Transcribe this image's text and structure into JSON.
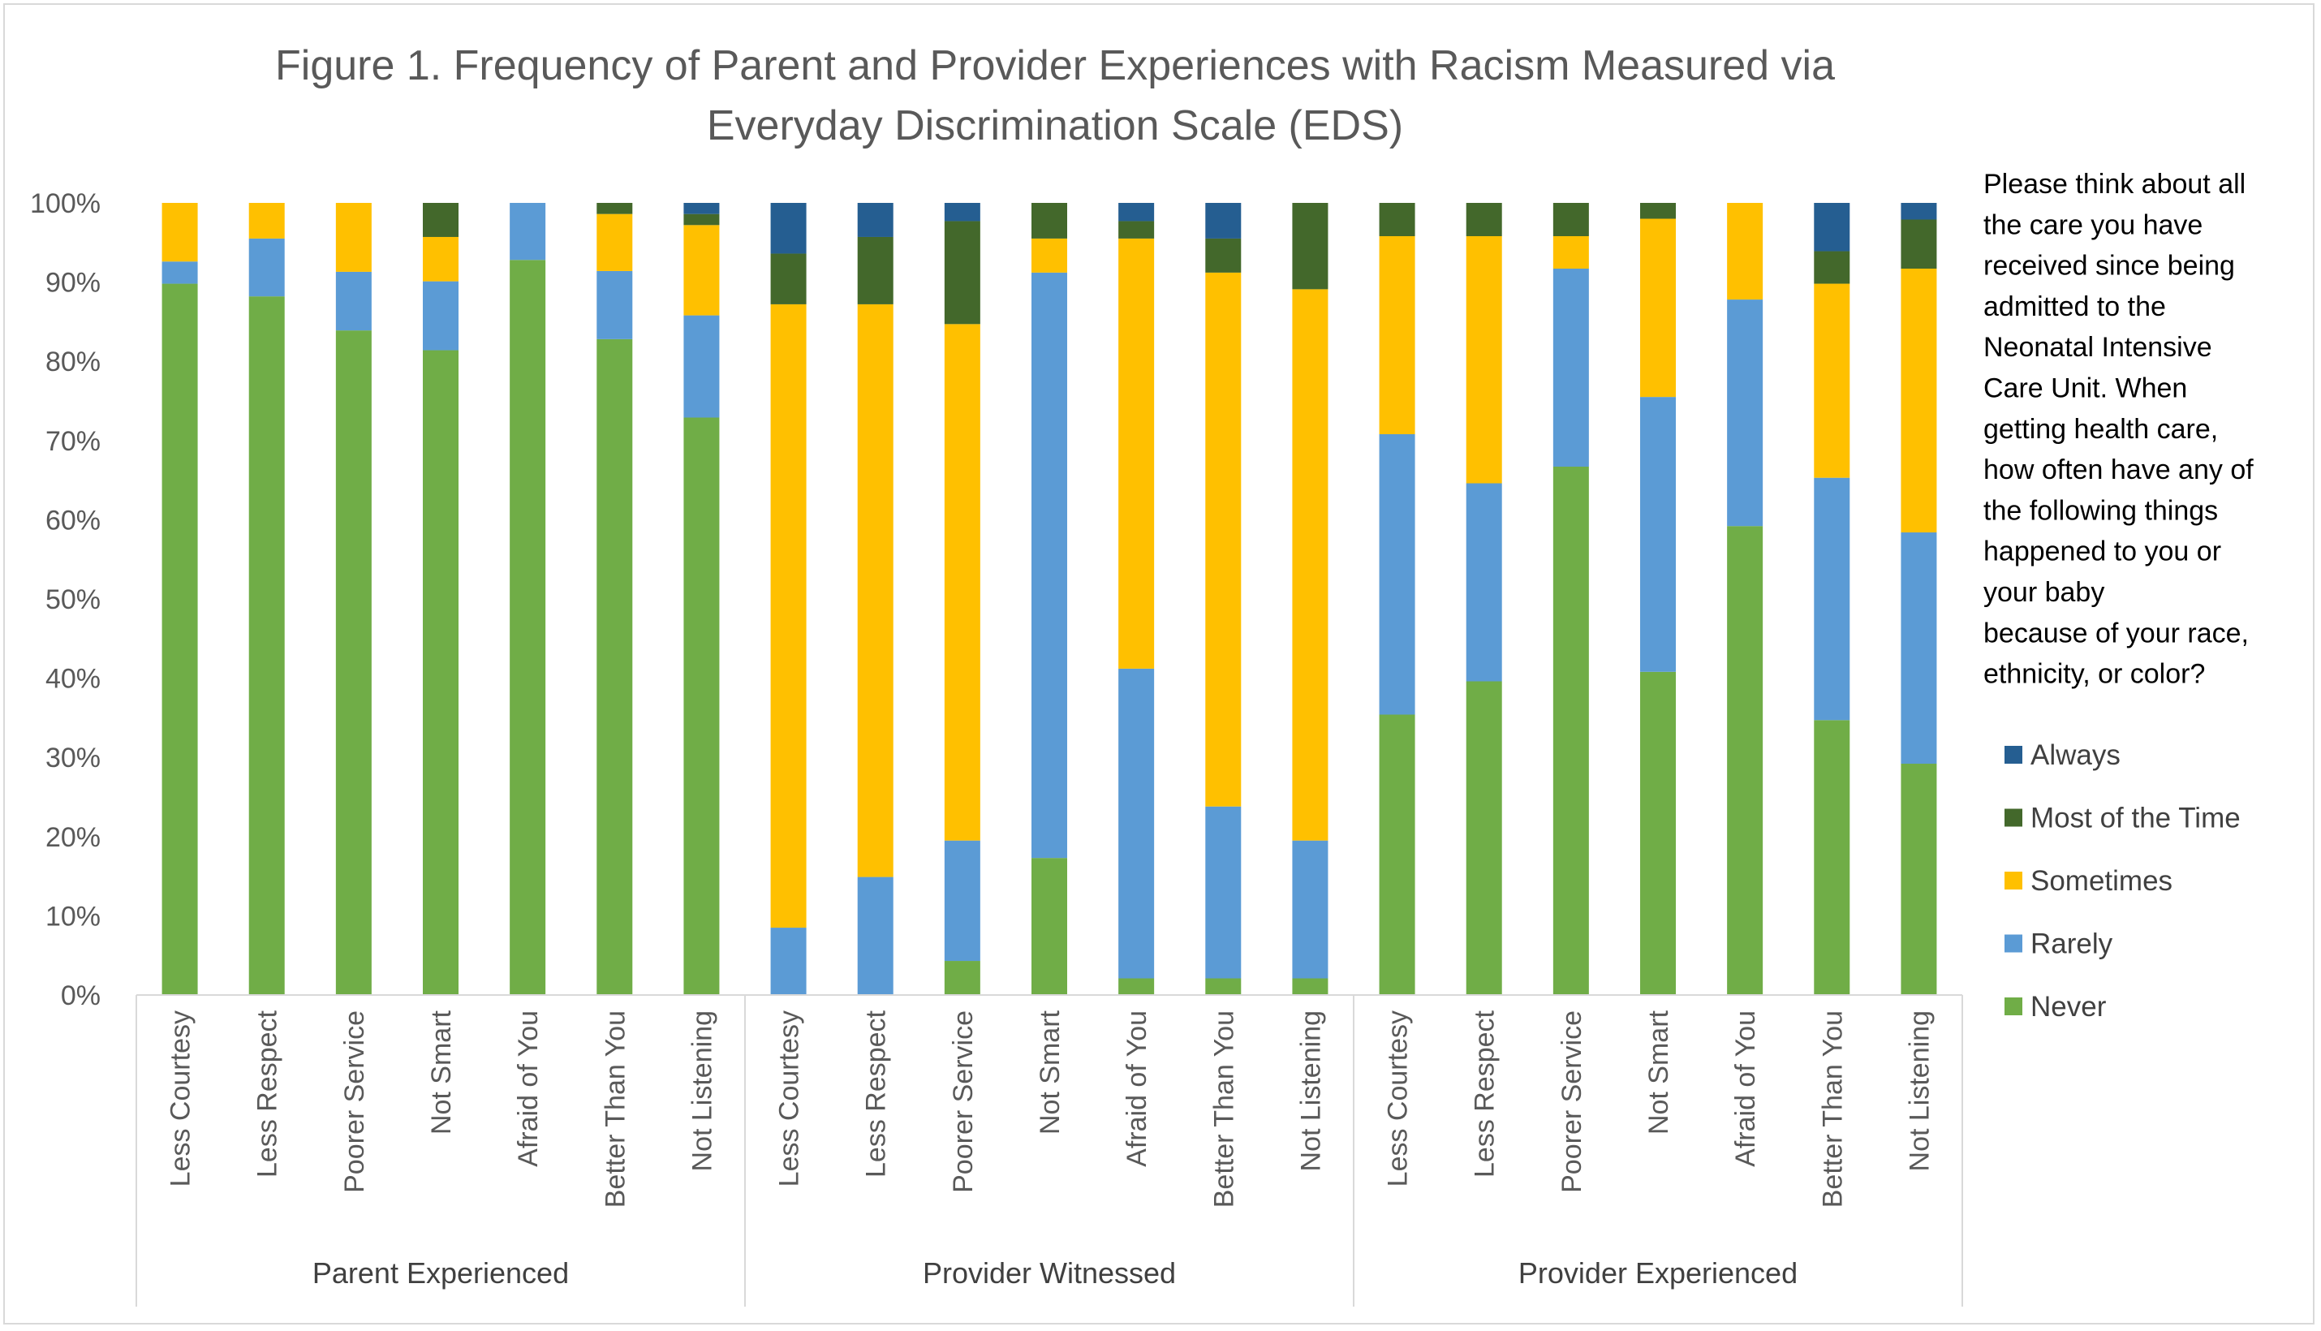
{
  "chart_data": {
    "type": "bar",
    "stacked": true,
    "percent_stacked": true,
    "title_lines": [
      "Figure 1. Frequency of Parent and Provider Experiences with Racism Measured via",
      "Everyday Discrimination Scale (EDS)"
    ],
    "y_ticks": [
      "0%",
      "10%",
      "20%",
      "30%",
      "40%",
      "50%",
      "60%",
      "70%",
      "80%",
      "90%",
      "100%"
    ],
    "ylim": [
      0,
      100
    ],
    "grid": false,
    "groups": [
      {
        "name": "Parent Experienced",
        "categories": [
          "Less Courtesy",
          "Less Respect",
          "Poorer Service",
          "Not Smart",
          "Afraid of You",
          "Better Than You",
          "Not Listening"
        ],
        "series": [
          {
            "name": "Never",
            "values": [
              89.8,
              88.2,
              83.9,
              81.4,
              92.8,
              82.8,
              72.9
            ]
          },
          {
            "name": "Rarely",
            "values": [
              2.8,
              7.3,
              7.4,
              8.7,
              7.2,
              8.6,
              12.9
            ]
          },
          {
            "name": "Sometimes",
            "values": [
              7.4,
              4.5,
              8.7,
              5.6,
              0,
              7.2,
              11.4
            ]
          },
          {
            "name": "Most of the Time",
            "values": [
              0,
              0,
              0,
              4.3,
              0,
              1.4,
              1.4
            ]
          },
          {
            "name": "Always",
            "values": [
              0,
              0,
              0,
              0,
              0,
              0,
              1.4
            ]
          }
        ]
      },
      {
        "name": "Provider Witnessed",
        "categories": [
          "Less Courtesy",
          "Less Respect",
          "Poorer Service",
          "Not Smart",
          "Afraid of You",
          "Better Than You",
          "Not Listening"
        ],
        "series": [
          {
            "name": "Never",
            "values": [
              0,
              0,
              4.3,
              17.3,
              2.1,
              2.1,
              2.1
            ]
          },
          {
            "name": "Rarely",
            "values": [
              8.5,
              14.9,
              15.2,
              73.9,
              39.1,
              21.7,
              17.4
            ]
          },
          {
            "name": "Sometimes",
            "values": [
              78.7,
              72.3,
              65.2,
              4.3,
              54.3,
              67.4,
              69.6
            ]
          },
          {
            "name": "Most of the Time",
            "values": [
              6.4,
              8.5,
              13.0,
              4.5,
              2.2,
              4.3,
              10.9
            ]
          },
          {
            "name": "Always",
            "values": [
              6.4,
              4.3,
              2.3,
              0,
              2.3,
              4.5,
              0
            ]
          }
        ]
      },
      {
        "name": "Provider Experienced",
        "categories": [
          "Less Courtesy",
          "Less Respect",
          "Poorer Service",
          "Not Smart",
          "Afraid of You",
          "Better Than You",
          "Not Listening"
        ],
        "series": [
          {
            "name": "Never",
            "values": [
              35.4,
              39.6,
              66.7,
              40.8,
              59.2,
              34.7,
              29.2
            ]
          },
          {
            "name": "Rarely",
            "values": [
              35.4,
              25.0,
              25.0,
              34.7,
              28.6,
              30.6,
              29.2
            ]
          },
          {
            "name": "Sometimes",
            "values": [
              25.0,
              31.2,
              4.1,
              22.5,
              12.2,
              24.5,
              33.3
            ]
          },
          {
            "name": "Most of the Time",
            "values": [
              4.2,
              4.2,
              4.2,
              2.0,
              0,
              4.1,
              6.2
            ]
          },
          {
            "name": "Always",
            "values": [
              0,
              0,
              0,
              0,
              0,
              6.1,
              2.1
            ]
          }
        ]
      }
    ],
    "legend": {
      "placement": "right",
      "note_lines": [
        "Please think about all",
        "the care you have",
        "received since being",
        "admitted to the",
        "Neonatal Intensive",
        "Care Unit. When",
        "getting health care,",
        "how often have any of",
        "the following things",
        "happened to you or",
        "your baby",
        "because of your race,",
        "ethnicity, or color?"
      ],
      "entries": [
        {
          "name": "Always",
          "color": "#255e91"
        },
        {
          "name": "Most of the Time",
          "color": "#43682b"
        },
        {
          "name": "Sometimes",
          "color": "#ffc000"
        },
        {
          "name": "Rarely",
          "color": "#5b9bd5"
        },
        {
          "name": "Never",
          "color": "#70ad47"
        }
      ]
    },
    "colors": {
      "Never": "#70ad47",
      "Rarely": "#5b9bd5",
      "Sometimes": "#ffc000",
      "Most of the Time": "#43682b",
      "Always": "#255e91"
    }
  }
}
